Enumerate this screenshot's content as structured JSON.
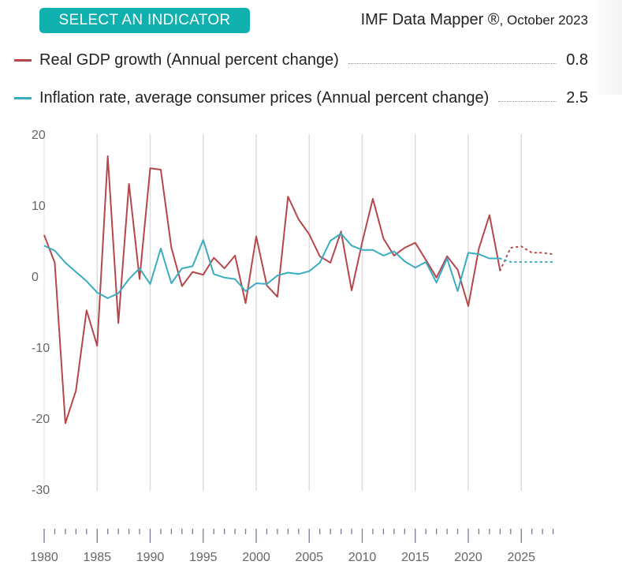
{
  "header": {
    "select_button": "SELECT AN INDICATOR",
    "source": "IMF Data Mapper ®",
    "source_date": ", October 2023"
  },
  "legend": [
    {
      "label": "Real GDP growth (Annual percent change)",
      "value": "0.8",
      "color": "#b5474b"
    },
    {
      "label": "Inflation rate, average consumer prices (Annual percent change)",
      "value": "2.5",
      "color": "#3aacc0"
    }
  ],
  "chart_data": {
    "type": "line",
    "xlim": [
      1980,
      2028
    ],
    "ylim": [
      -30,
      20
    ],
    "y_ticks": [
      "20",
      "10",
      "0",
      "-10",
      "-20",
      "-30"
    ],
    "x_ticks": [
      "1980",
      "1985",
      "1990",
      "1995",
      "2000",
      "2005",
      "2010",
      "2015",
      "2020",
      "2025"
    ],
    "grid": "vertical",
    "projection_start": 2024,
    "x": [
      1980,
      1981,
      1982,
      1983,
      1984,
      1985,
      1986,
      1987,
      1988,
      1989,
      1990,
      1991,
      1992,
      1993,
      1994,
      1995,
      1996,
      1997,
      1998,
      1999,
      2000,
      2001,
      2002,
      2003,
      2004,
      2005,
      2006,
      2007,
      2008,
      2009,
      2010,
      2011,
      2012,
      2013,
      2014,
      2015,
      2016,
      2017,
      2018,
      2019,
      2020,
      2021,
      2022,
      2023,
      2024,
      2025,
      2026,
      2027,
      2028
    ],
    "series": [
      {
        "name": "Real GDP growth (Annual percent change)",
        "color": "#b5474b",
        "values": [
          5.8,
          1.9,
          -20.7,
          -16.1,
          -4.8,
          -9.8,
          16.9,
          -6.6,
          13.0,
          -0.4,
          15.2,
          15.0,
          4.0,
          -1.4,
          0.6,
          0.2,
          2.6,
          1.1,
          2.9,
          -3.8,
          5.6,
          -1.3,
          -2.9,
          11.2,
          8.0,
          5.9,
          2.8,
          1.9,
          6.3,
          -2.0,
          4.8,
          10.9,
          5.3,
          2.9,
          4.0,
          4.7,
          2.3,
          -0.2,
          2.8,
          0.9,
          -4.2,
          3.9,
          8.6,
          0.8,
          4.0,
          4.2,
          3.3,
          3.3,
          3.1
        ]
      },
      {
        "name": "Inflation rate, average consumer prices (Annual percent change)",
        "color": "#3aacc0",
        "values": [
          4.3,
          3.6,
          1.9,
          0.6,
          -0.7,
          -2.3,
          -3.1,
          -2.4,
          -0.4,
          1.1,
          -1.1,
          3.9,
          -1.0,
          1.1,
          1.4,
          5.1,
          0.3,
          -0.2,
          -0.4,
          -2.1,
          -1.0,
          -1.1,
          0.1,
          0.5,
          0.3,
          0.7,
          1.9,
          5.0,
          6.0,
          4.3,
          3.7,
          3.7,
          2.9,
          3.5,
          2.1,
          1.2,
          2.0,
          -0.9,
          2.5,
          -2.1,
          3.3,
          3.1,
          2.5,
          2.5,
          2.0,
          2.0,
          2.0,
          2.0,
          2.0
        ]
      }
    ]
  }
}
